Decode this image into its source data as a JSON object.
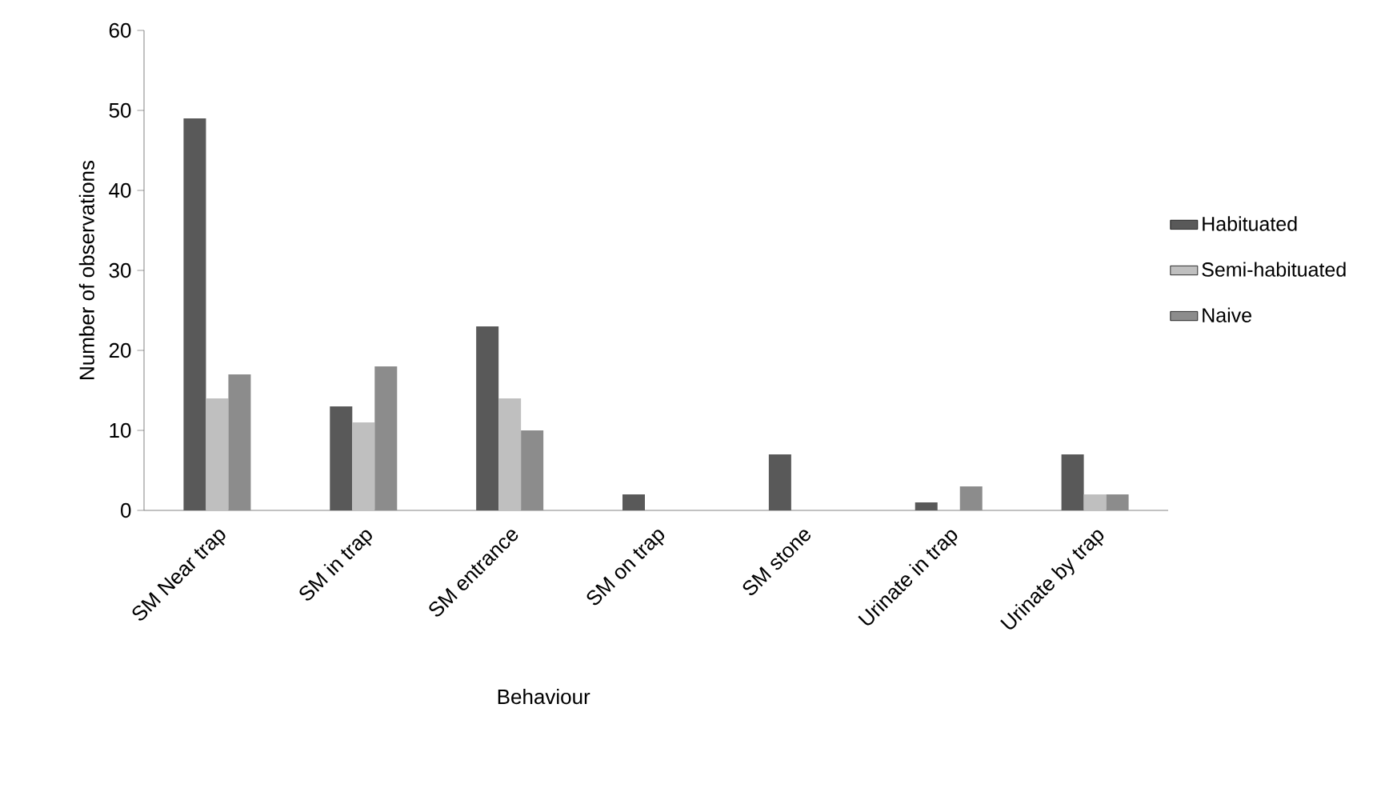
{
  "chart_data": {
    "type": "bar",
    "xlabel": "Behaviour",
    "ylabel": "Number of observations",
    "categories": [
      "SM Near trap",
      "SM in trap",
      "SM entrance",
      "SM on trap",
      "SM stone",
      "Urinate in trap",
      "Urinate by trap"
    ],
    "series": [
      {
        "name": "Habituated",
        "color": "#595959",
        "values": [
          49,
          13,
          23,
          2,
          7,
          1,
          7
        ]
      },
      {
        "name": "Semi-habituated",
        "color": "#bfbfbf",
        "values": [
          14,
          11,
          14,
          0,
          0,
          0,
          2
        ]
      },
      {
        "name": "Naive",
        "color": "#8c8c8c",
        "values": [
          17,
          18,
          10,
          0,
          0,
          3,
          2
        ]
      }
    ],
    "ylim": [
      0,
      60
    ],
    "yticks": [
      0,
      10,
      20,
      30,
      40,
      50,
      60
    ],
    "grid": false,
    "legend": "right"
  }
}
